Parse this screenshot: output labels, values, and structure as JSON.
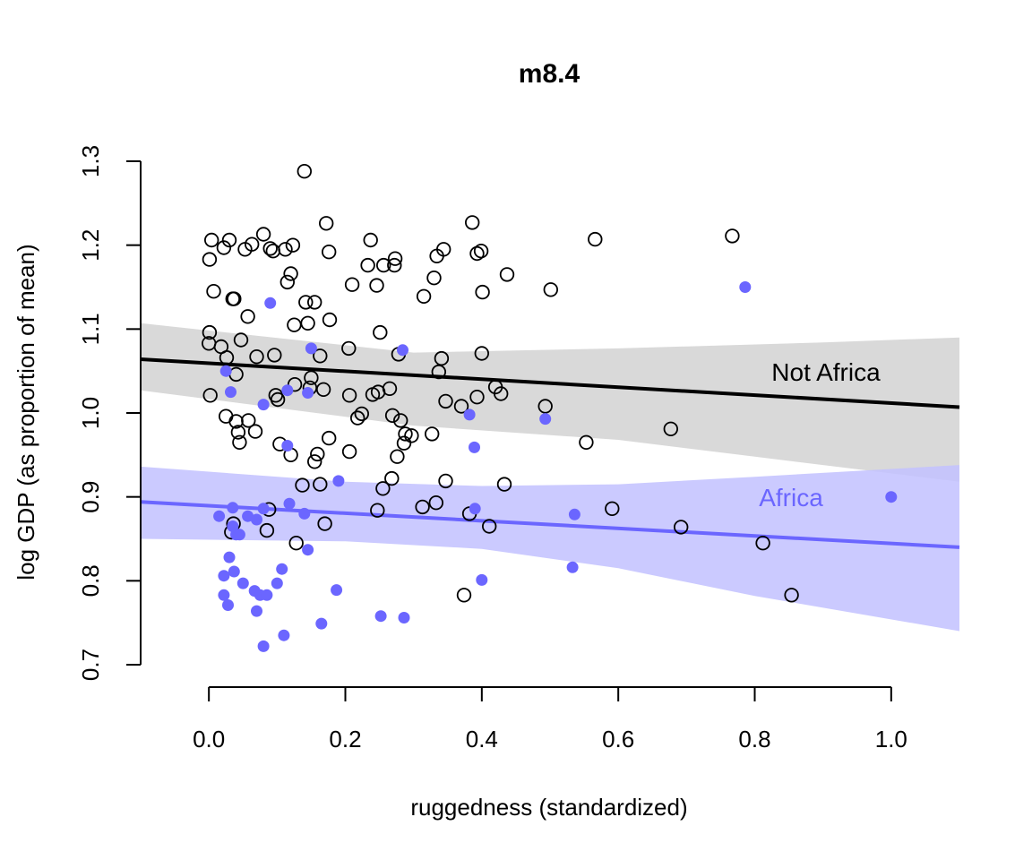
{
  "chart_data": {
    "type": "scatter",
    "title": "m8.4",
    "xlabel": "ruggedness (standardized)",
    "ylabel": "log GDP (as proportion of mean)",
    "xlim": [
      -0.1,
      1.1
    ],
    "ylim": [
      0.7,
      1.3
    ],
    "x_ticks": [
      "0.0",
      "0.2",
      "0.4",
      "0.6",
      "0.8",
      "1.0"
    ],
    "y_ticks": [
      "0.7",
      "0.8",
      "0.9",
      "1.0",
      "1.1",
      "1.2",
      "1.3"
    ],
    "grid": false,
    "series": [
      {
        "name": "Not Africa",
        "color": "#000000",
        "marker": "open-circle",
        "band_color": "#d9d9d9",
        "fit_line": [
          [
            -0.1,
            1.064
          ],
          [
            1.1,
            1.007
          ]
        ],
        "band_upper": [
          [
            -0.1,
            1.107
          ],
          [
            0.3,
            1.072
          ],
          [
            0.6,
            1.077
          ],
          [
            0.9,
            1.084
          ],
          [
            1.1,
            1.09
          ]
        ],
        "band_lower": [
          [
            -0.1,
            1.027
          ],
          [
            0.3,
            0.985
          ],
          [
            0.6,
            0.968
          ],
          [
            0.9,
            0.938
          ],
          [
            1.1,
            0.918
          ]
        ],
        "points": [
          [
            0.002,
            1.021
          ],
          [
            0.001,
            1.096
          ],
          [
            0.0,
            1.083
          ],
          [
            0.001,
            1.183
          ],
          [
            0.004,
            1.206
          ],
          [
            0.007,
            1.145
          ],
          [
            0.018,
            1.079
          ],
          [
            0.022,
            1.197
          ],
          [
            0.03,
            1.206
          ],
          [
            0.026,
            1.066
          ],
          [
            0.025,
            0.996
          ],
          [
            0.035,
            1.136
          ],
          [
            0.037,
            1.136
          ],
          [
            0.04,
            1.046
          ],
          [
            0.04,
            0.99
          ],
          [
            0.043,
            0.977
          ],
          [
            0.045,
            0.965
          ],
          [
            0.047,
            1.087
          ],
          [
            0.053,
            1.195
          ],
          [
            0.057,
            1.115
          ],
          [
            0.058,
            0.991
          ],
          [
            0.063,
            1.201
          ],
          [
            0.068,
            0.978
          ],
          [
            0.07,
            1.067
          ],
          [
            0.08,
            1.213
          ],
          [
            0.09,
            1.196
          ],
          [
            0.094,
            1.193
          ],
          [
            0.096,
            1.069
          ],
          [
            0.098,
            1.021
          ],
          [
            0.101,
            1.016
          ],
          [
            0.104,
            0.963
          ],
          [
            0.112,
            1.195
          ],
          [
            0.115,
            1.156
          ],
          [
            0.12,
            0.95
          ],
          [
            0.12,
            1.166
          ],
          [
            0.123,
            1.2
          ],
          [
            0.125,
            1.105
          ],
          [
            0.126,
            1.034
          ],
          [
            0.14,
            1.288
          ],
          [
            0.142,
            1.132
          ],
          [
            0.145,
            1.107
          ],
          [
            0.148,
            1.03
          ],
          [
            0.15,
            1.042
          ],
          [
            0.155,
            1.132
          ],
          [
            0.155,
            0.942
          ],
          [
            0.159,
            0.951
          ],
          [
            0.163,
            1.068
          ],
          [
            0.168,
            1.028
          ],
          [
            0.172,
            1.226
          ],
          [
            0.176,
            1.192
          ],
          [
            0.177,
            1.111
          ],
          [
            0.176,
            0.97
          ],
          [
            0.205,
            1.077
          ],
          [
            0.206,
            1.021
          ],
          [
            0.206,
            0.954
          ],
          [
            0.21,
            1.153
          ],
          [
            0.218,
            0.994
          ],
          [
            0.224,
            0.999
          ],
          [
            0.233,
            1.176
          ],
          [
            0.237,
            1.206
          ],
          [
            0.24,
            1.022
          ],
          [
            0.246,
            1.152
          ],
          [
            0.248,
            1.025
          ],
          [
            0.251,
            1.096
          ],
          [
            0.256,
            1.176
          ],
          [
            0.265,
            1.029
          ],
          [
            0.269,
            0.997
          ],
          [
            0.272,
            1.176
          ],
          [
            0.273,
            1.184
          ],
          [
            0.276,
            0.948
          ],
          [
            0.278,
            1.07
          ],
          [
            0.281,
            0.991
          ],
          [
            0.286,
            0.964
          ],
          [
            0.288,
            0.975
          ],
          [
            0.297,
            0.973
          ],
          [
            0.315,
            1.139
          ],
          [
            0.327,
            0.975
          ],
          [
            0.33,
            1.161
          ],
          [
            0.334,
            1.187
          ],
          [
            0.337,
            1.049
          ],
          [
            0.341,
            1.065
          ],
          [
            0.344,
            1.195
          ],
          [
            0.347,
            1.014
          ],
          [
            0.347,
            0.919
          ],
          [
            0.37,
            1.008
          ],
          [
            0.386,
            1.227
          ],
          [
            0.393,
            1.19
          ],
          [
            0.393,
            1.019
          ],
          [
            0.399,
            1.193
          ],
          [
            0.4,
            1.071
          ],
          [
            0.401,
            1.144
          ],
          [
            0.42,
            1.031
          ],
          [
            0.428,
            1.023
          ],
          [
            0.437,
            1.165
          ],
          [
            0.493,
            1.008
          ],
          [
            0.501,
            1.147
          ],
          [
            0.553,
            0.965
          ],
          [
            0.566,
            1.207
          ],
          [
            0.767,
            1.211
          ],
          [
            0.677,
            0.981
          ],
          [
            0.033,
            0.858
          ],
          [
            0.036,
            0.868
          ],
          [
            0.085,
            0.86
          ],
          [
            0.088,
            0.885
          ],
          [
            0.128,
            0.845
          ],
          [
            0.137,
            0.914
          ],
          [
            0.163,
            0.915
          ],
          [
            0.17,
            0.868
          ],
          [
            0.247,
            0.884
          ],
          [
            0.255,
            0.91
          ],
          [
            0.268,
            0.922
          ],
          [
            0.313,
            0.888
          ],
          [
            0.333,
            0.893
          ],
          [
            0.374,
            0.783
          ],
          [
            0.382,
            0.88
          ],
          [
            0.411,
            0.865
          ],
          [
            0.433,
            0.915
          ],
          [
            0.591,
            0.886
          ],
          [
            0.692,
            0.864
          ],
          [
            0.812,
            0.845
          ],
          [
            0.854,
            0.783
          ]
        ]
      },
      {
        "name": "Africa",
        "color": "#6b66ff",
        "marker": "filled-circle",
        "band_color": "#c2c1ff",
        "fit_line": [
          [
            -0.1,
            0.894
          ],
          [
            1.1,
            0.84
          ]
        ],
        "band_upper": [
          [
            -0.1,
            0.936
          ],
          [
            0.2,
            0.918
          ],
          [
            0.4,
            0.913
          ],
          [
            0.6,
            0.915
          ],
          [
            0.8,
            0.924
          ],
          [
            1.1,
            0.938
          ]
        ],
        "band_lower": [
          [
            -0.1,
            0.85
          ],
          [
            0.2,
            0.847
          ],
          [
            0.4,
            0.838
          ],
          [
            0.6,
            0.815
          ],
          [
            0.8,
            0.782
          ],
          [
            1.1,
            0.74
          ]
        ],
        "points": [
          [
            0.025,
            1.05
          ],
          [
            0.032,
            1.025
          ],
          [
            0.08,
            1.01
          ],
          [
            0.09,
            1.131
          ],
          [
            0.115,
            0.961
          ],
          [
            0.115,
            1.027
          ],
          [
            0.15,
            1.077
          ],
          [
            0.145,
            1.024
          ],
          [
            0.284,
            1.075
          ],
          [
            0.382,
            0.998
          ],
          [
            0.389,
            0.959
          ],
          [
            0.493,
            0.993
          ],
          [
            0.786,
            1.15
          ],
          [
            1.0,
            0.9
          ],
          [
            0.015,
            0.877
          ],
          [
            0.035,
            0.887
          ],
          [
            0.035,
            0.865
          ],
          [
            0.04,
            0.855
          ],
          [
            0.045,
            0.855
          ],
          [
            0.057,
            0.877
          ],
          [
            0.07,
            0.873
          ],
          [
            0.08,
            0.886
          ],
          [
            0.118,
            0.892
          ],
          [
            0.14,
            0.88
          ],
          [
            0.19,
            0.919
          ],
          [
            0.39,
            0.886
          ],
          [
            0.536,
            0.879
          ],
          [
            0.022,
            0.806
          ],
          [
            0.03,
            0.828
          ],
          [
            0.037,
            0.811
          ],
          [
            0.05,
            0.797
          ],
          [
            0.067,
            0.788
          ],
          [
            0.075,
            0.783
          ],
          [
            0.085,
            0.783
          ],
          [
            0.1,
            0.797
          ],
          [
            0.107,
            0.814
          ],
          [
            0.145,
            0.837
          ],
          [
            0.187,
            0.789
          ],
          [
            0.4,
            0.801
          ],
          [
            0.533,
            0.816
          ],
          [
            0.022,
            0.783
          ],
          [
            0.028,
            0.771
          ],
          [
            0.07,
            0.764
          ],
          [
            0.08,
            0.722
          ],
          [
            0.11,
            0.735
          ],
          [
            0.165,
            0.749
          ],
          [
            0.252,
            0.758
          ],
          [
            0.286,
            0.756
          ]
        ]
      }
    ]
  }
}
